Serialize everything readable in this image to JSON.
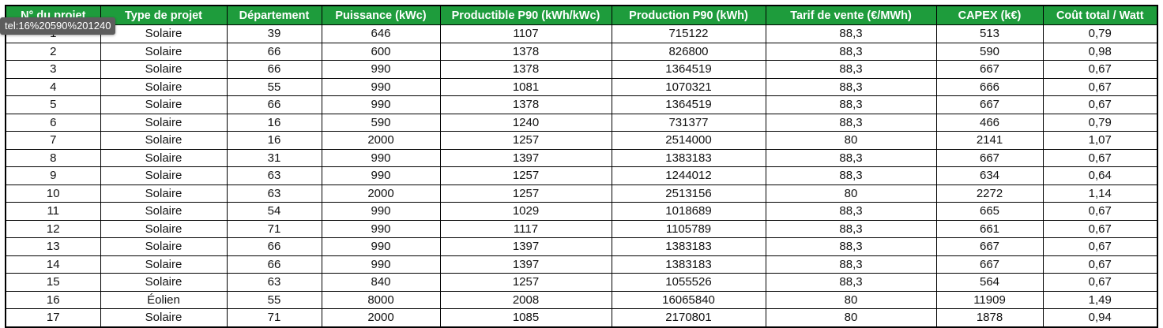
{
  "table": {
    "headers": [
      "N° du projet",
      "Type de projet",
      "Département",
      "Puissance (kWc)",
      "Productible P90 (kWh/kWc)",
      "Production P90 (kWh)",
      "Tarif de vente (€/MWh)",
      "CAPEX (k€)",
      "Coût total / Watt"
    ],
    "rows": [
      [
        "1",
        "Solaire",
        "39",
        "646",
        "1107",
        "715122",
        "88,3",
        "513",
        "0,79"
      ],
      [
        "2",
        "Solaire",
        "66",
        "600",
        "1378",
        "826800",
        "88,3",
        "590",
        "0,98"
      ],
      [
        "3",
        "Solaire",
        "66",
        "990",
        "1378",
        "1364519",
        "88,3",
        "667",
        "0,67"
      ],
      [
        "4",
        "Solaire",
        "55",
        "990",
        "1081",
        "1070321",
        "88,3",
        "666",
        "0,67"
      ],
      [
        "5",
        "Solaire",
        "66",
        "990",
        "1378",
        "1364519",
        "88,3",
        "667",
        "0,67"
      ],
      [
        "6",
        "Solaire",
        "16",
        "590",
        "1240",
        "731377",
        "88,3",
        "466",
        "0,79"
      ],
      [
        "7",
        "Solaire",
        "16",
        "2000",
        "1257",
        "2514000",
        "80",
        "2141",
        "1,07"
      ],
      [
        "8",
        "Solaire",
        "31",
        "990",
        "1397",
        "1383183",
        "88,3",
        "667",
        "0,67"
      ],
      [
        "9",
        "Solaire",
        "63",
        "990",
        "1257",
        "1244012",
        "88,3",
        "634",
        "0,64"
      ],
      [
        "10",
        "Solaire",
        "63",
        "2000",
        "1257",
        "2513156",
        "80",
        "2272",
        "1,14"
      ],
      [
        "11",
        "Solaire",
        "54",
        "990",
        "1029",
        "1018689",
        "88,3",
        "665",
        "0,67"
      ],
      [
        "12",
        "Solaire",
        "71",
        "990",
        "1117",
        "1105789",
        "88,3",
        "661",
        "0,67"
      ],
      [
        "13",
        "Solaire",
        "66",
        "990",
        "1397",
        "1383183",
        "88,3",
        "667",
        "0,67"
      ],
      [
        "14",
        "Solaire",
        "66",
        "990",
        "1397",
        "1383183",
        "88,3",
        "667",
        "0,67"
      ],
      [
        "15",
        "Solaire",
        "63",
        "840",
        "1257",
        "1055526",
        "88,3",
        "564",
        "0,67"
      ],
      [
        "16",
        "Éolien",
        "55",
        "8000",
        "2008",
        "16065840",
        "80",
        "11909",
        "1,49"
      ],
      [
        "17",
        "Solaire",
        "71",
        "2000",
        "1085",
        "2170801",
        "80",
        "1878",
        "0,94"
      ]
    ]
  },
  "tooltip": {
    "text": "tel:16%20590%201240"
  },
  "colors": {
    "header_bg": "#1e9c3c",
    "header_text": "#ffffff",
    "grid": "#000000"
  }
}
